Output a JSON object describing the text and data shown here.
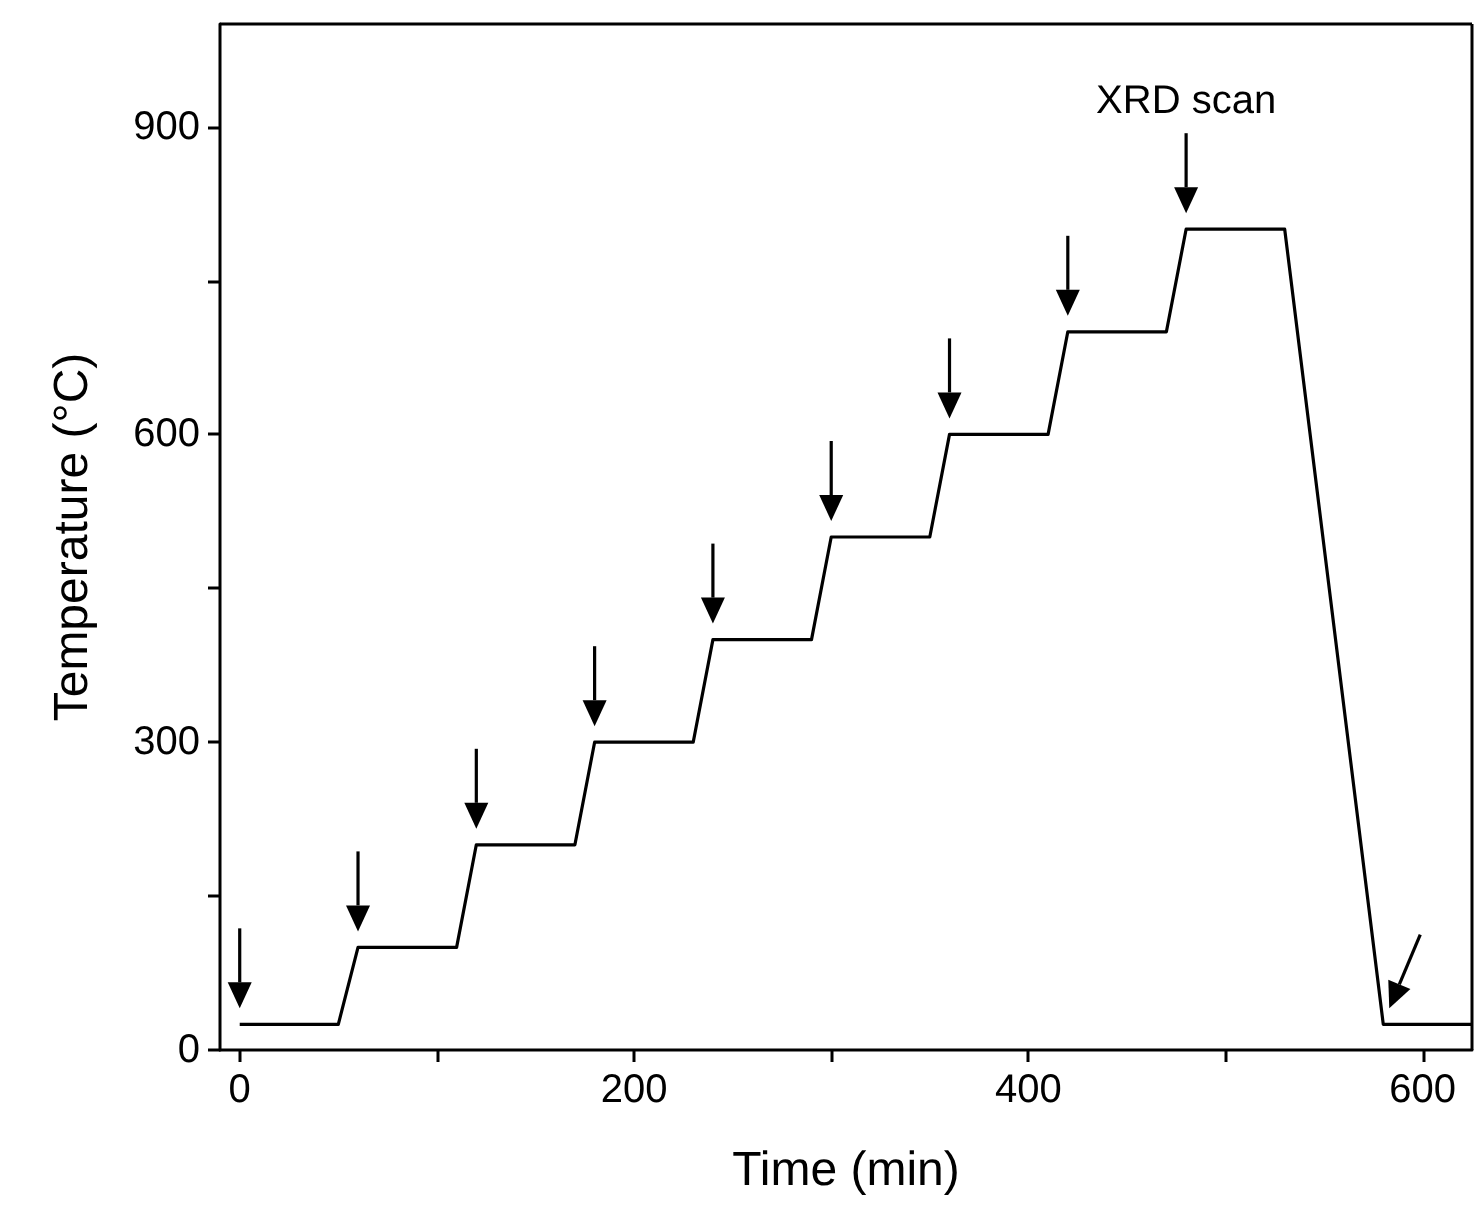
{
  "chart_data": {
    "type": "line",
    "xlabel": "Time (min)",
    "ylabel": "Temperature (°C)",
    "x": [
      0,
      50,
      60,
      110,
      120,
      170,
      180,
      230,
      240,
      290,
      300,
      350,
      360,
      410,
      420,
      470,
      480,
      530,
      580,
      625
    ],
    "series": [
      {
        "color": "#000000",
        "values": [
          25,
          25,
          100,
          100,
          200,
          200,
          300,
          300,
          400,
          400,
          500,
          500,
          600,
          600,
          700,
          700,
          800,
          800,
          25,
          25
        ]
      }
    ],
    "xlim": [
      -10,
      625
    ],
    "ylim": [
      0,
      1000
    ],
    "xticks": [
      0,
      {
        "value": 100,
        "label": null
      },
      200,
      {
        "value": 300,
        "label": null
      },
      400,
      {
        "value": 500,
        "label": null
      },
      600
    ],
    "yticks": [
      0,
      {
        "value": 150,
        "label": null
      },
      300,
      {
        "value": 450,
        "label": null
      },
      600,
      {
        "value": 750,
        "label": null
      },
      900
    ],
    "annotations": [
      {
        "text": "XRD scan",
        "x": 480,
        "y": 800
      }
    ],
    "marker": "none",
    "line_style": "solid"
  }
}
